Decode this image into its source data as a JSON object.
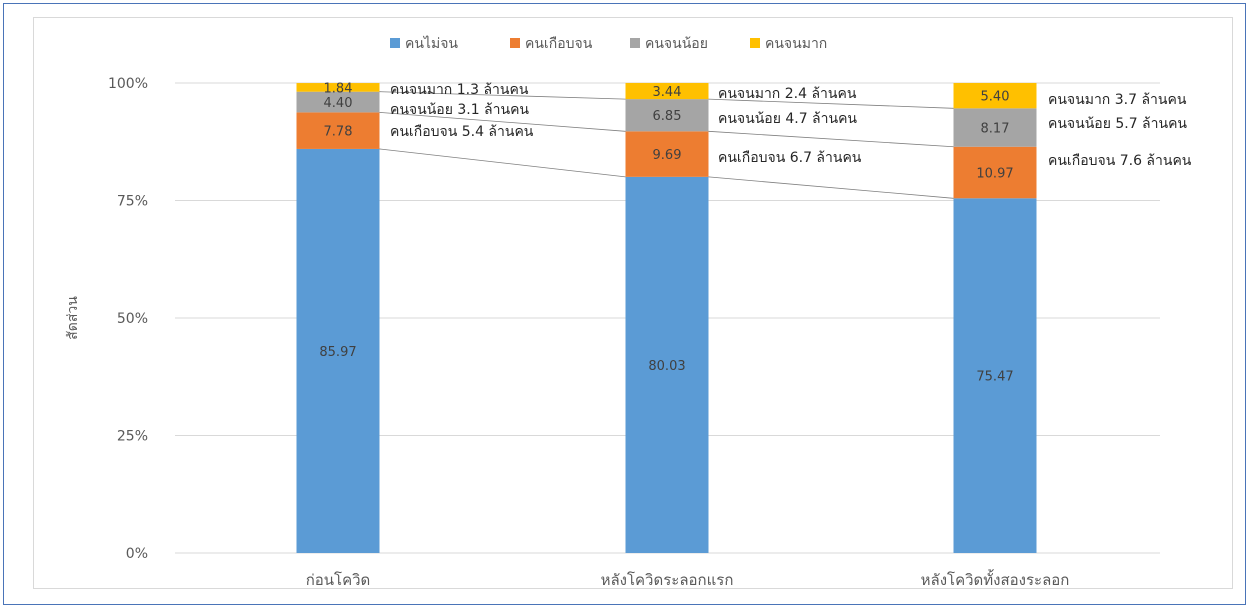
{
  "chart_data": {
    "type": "bar",
    "stacked": true,
    "percent_stacked": true,
    "categories": [
      "ก่อนโควิด",
      "หลังโควิดระลอกแรก",
      "หลังโควิดทั้งสองระลอก"
    ],
    "series": [
      {
        "name": "คนไม่จน",
        "color": "#5b9bd5",
        "values": [
          85.97,
          80.03,
          75.47
        ],
        "labels": [
          "85.97",
          "80.03",
          "75.47"
        ]
      },
      {
        "name": "คนเกือบจน",
        "color": "#ed7d31",
        "values": [
          7.78,
          9.69,
          10.97
        ],
        "labels": [
          "7.78",
          "9.69",
          "10.97"
        ]
      },
      {
        "name": "คนจนน้อย",
        "color": "#a5a5a5",
        "values": [
          4.4,
          6.85,
          8.17
        ],
        "labels": [
          "4.40",
          "6.85",
          "8.17"
        ]
      },
      {
        "name": "คนจนมาก",
        "color": "#ffc000",
        "values": [
          1.84,
          3.44,
          5.4
        ],
        "labels": [
          "1.84",
          "3.44",
          "5.40"
        ]
      }
    ],
    "ylabel": "สัดส่วน",
    "xlabel": "",
    "ylim": [
      0,
      100
    ],
    "yticks": [
      "0%",
      "25%",
      "50%",
      "75%",
      "100%"
    ],
    "ytick_values": [
      0,
      25,
      50,
      75,
      100
    ],
    "grid": true,
    "legend_position": "top",
    "annotations": [
      [
        "คนจนมาก 1.3 ล้านคน",
        "คนจนน้อย 3.1 ล้านคน",
        "คนเกือบจน 5.4 ล้านคน"
      ],
      [
        "คนจนมาก 2.4 ล้านคน",
        "คนจนน้อย 4.7 ล้านคน",
        "คนเกือบจน 6.7 ล้านคน"
      ],
      [
        "คนจนมาก 3.7 ล้านคน",
        "คนจนน้อย 5.7 ล้านคน",
        "คนเกือบจน 7.6 ล้านคน"
      ]
    ]
  }
}
